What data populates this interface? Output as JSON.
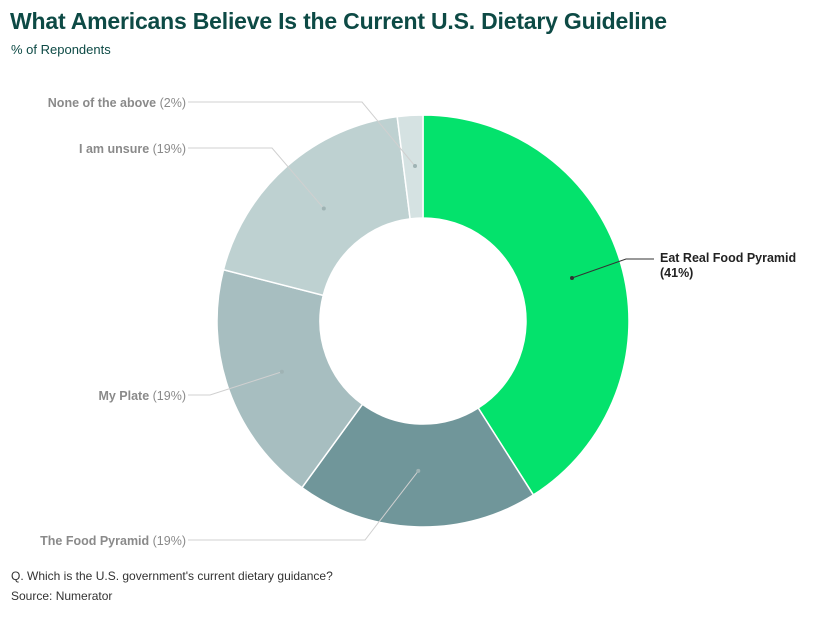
{
  "chart_data": {
    "type": "pie",
    "style": "donut",
    "title": "What Americans Believe Is the Current U.S. Dietary Guideline",
    "subtitle": "% of Repondents",
    "slices": [
      {
        "label": "Eat Real Food Pyramid",
        "pct_label": "(41%)",
        "value": 41,
        "color": "#04e26c",
        "highlight": true
      },
      {
        "label": "The Food Pyramid",
        "pct_label": "(19%)",
        "value": 19,
        "color": "#70969a",
        "highlight": false
      },
      {
        "label": "My Plate",
        "pct_label": "(19%)",
        "value": 19,
        "color": "#a7bec0",
        "highlight": false
      },
      {
        "label": "I am unsure",
        "pct_label": "(19%)",
        "value": 19,
        "color": "#bed1d1",
        "highlight": false
      },
      {
        "label": "None of the above",
        "pct_label": "(2%)",
        "value": 2,
        "color": "#d5e2e2",
        "highlight": false
      }
    ]
  },
  "footnote": {
    "question": "Q. Which is the U.S. government's current dietary guidance?",
    "source": "Source: Numerator"
  }
}
